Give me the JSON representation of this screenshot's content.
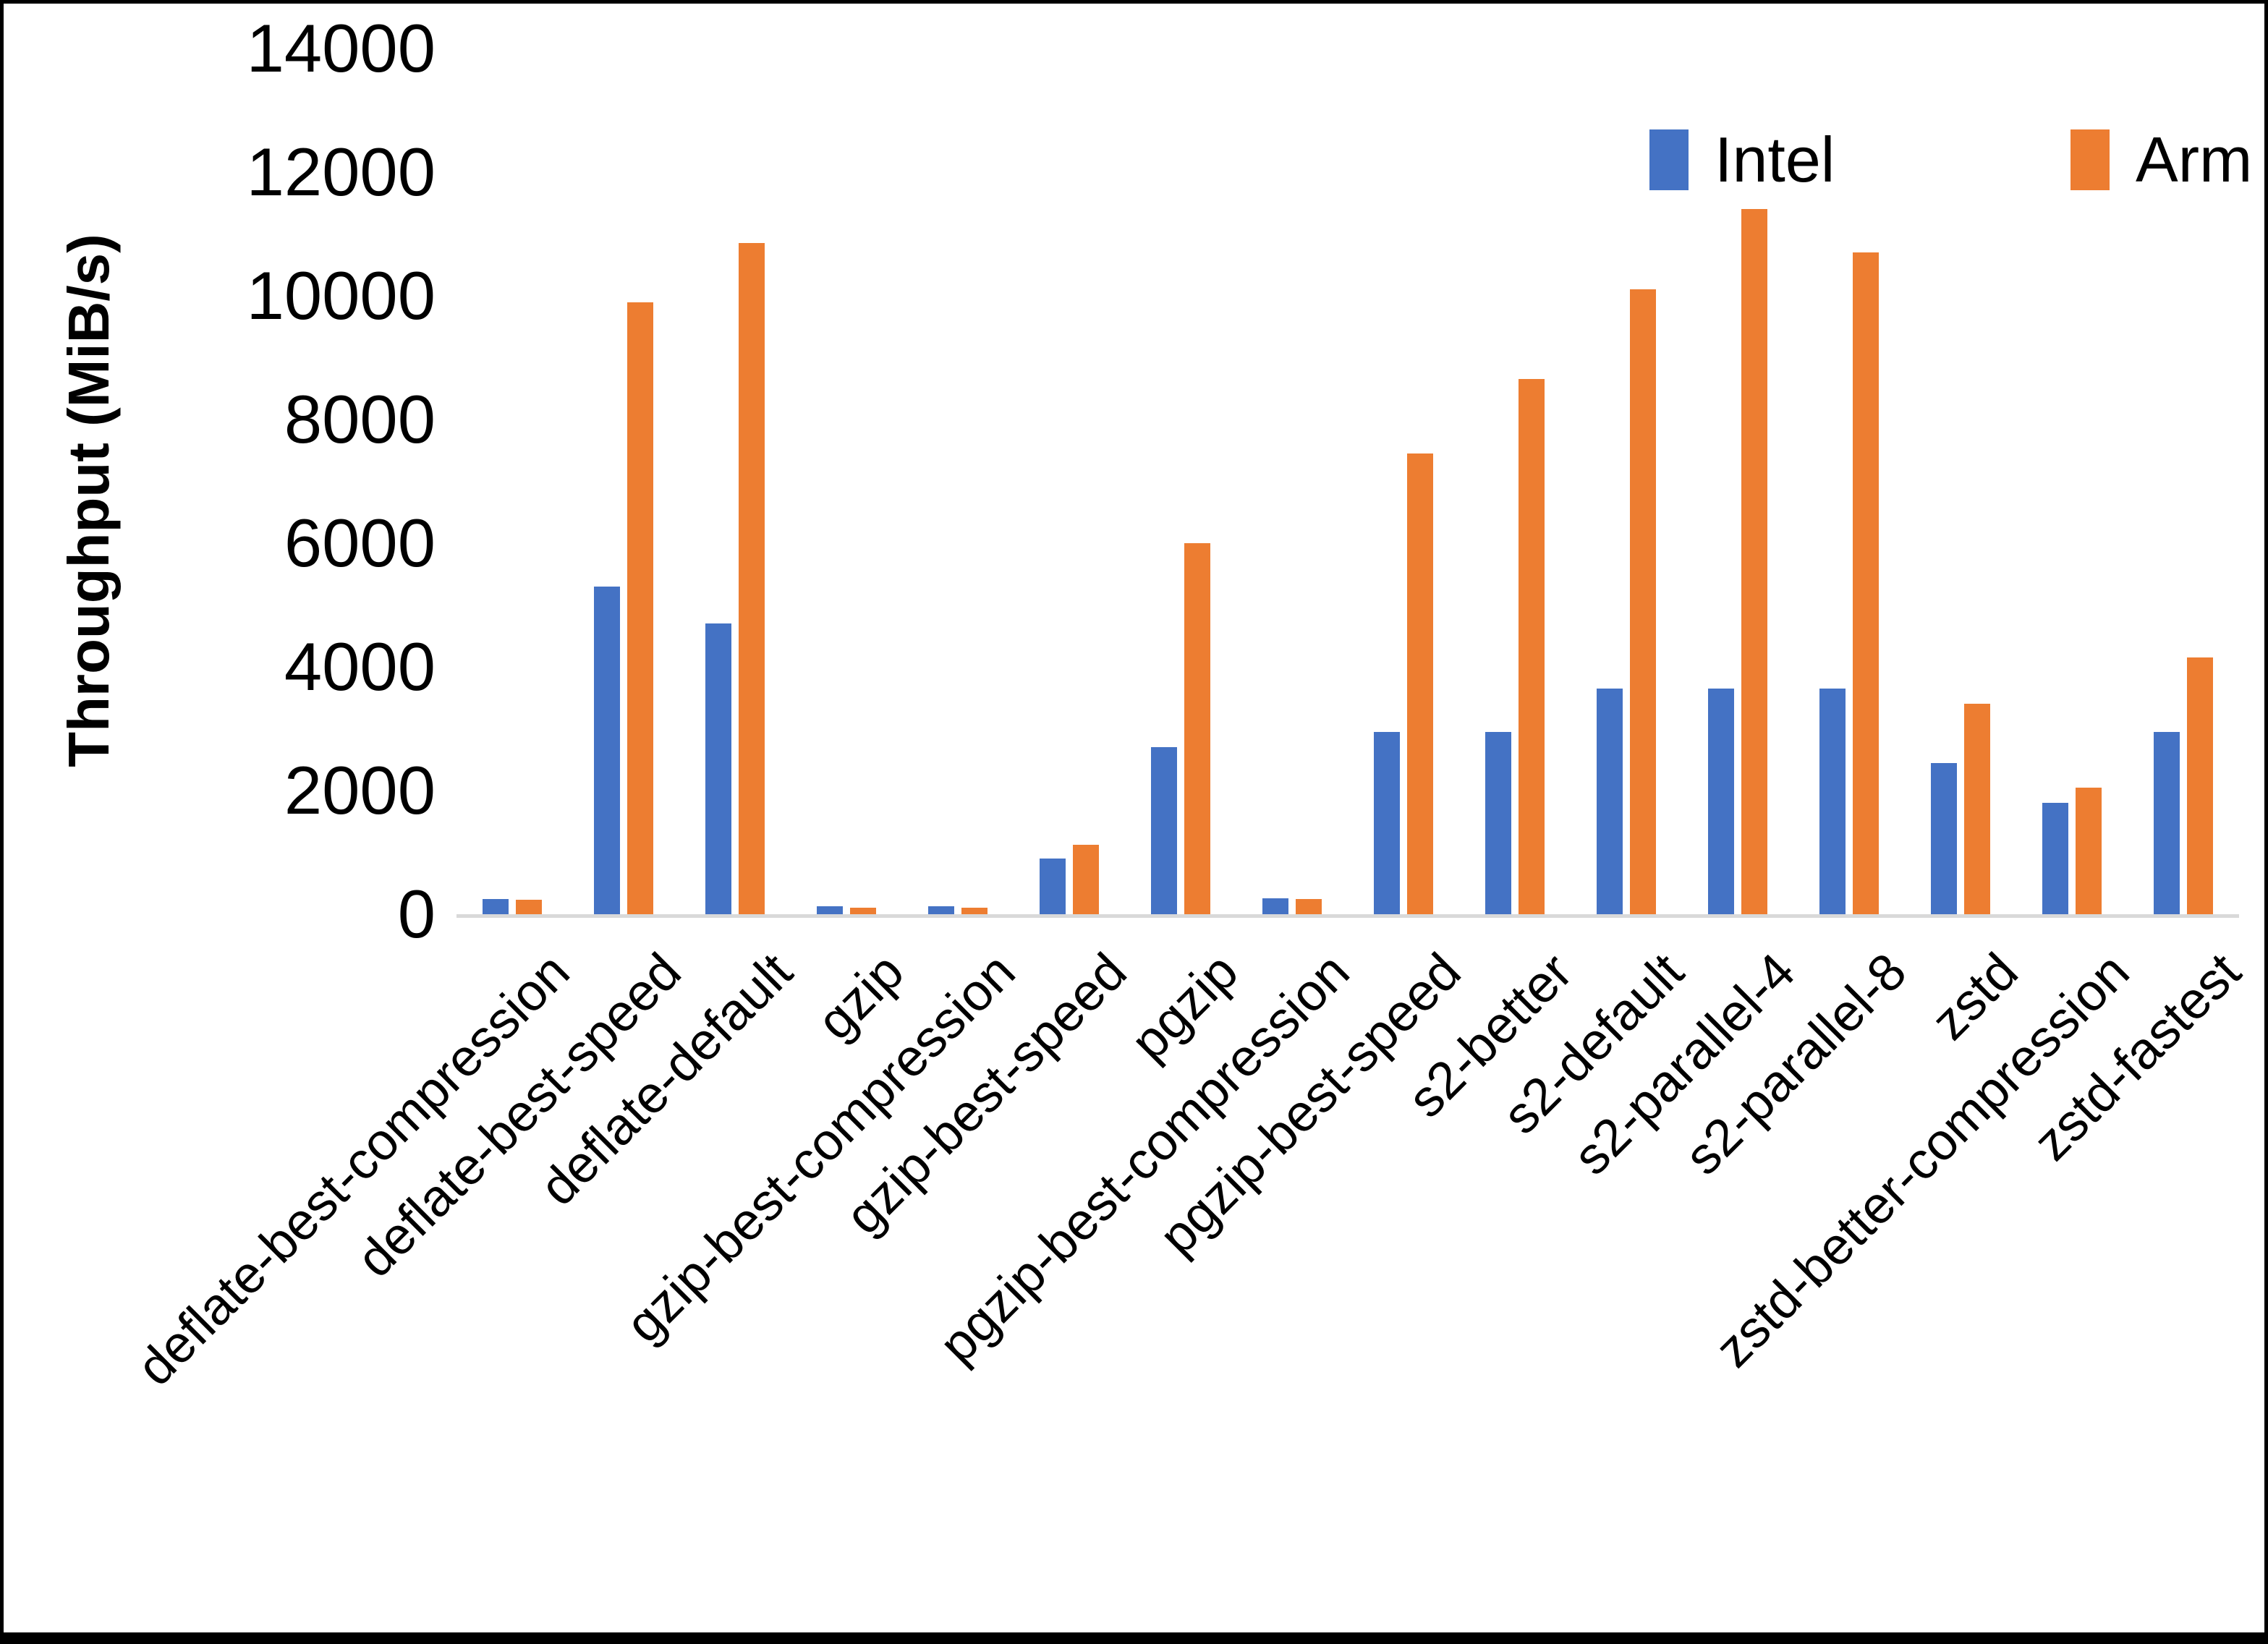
{
  "chart_data": {
    "type": "bar",
    "title": "",
    "xlabel": "",
    "ylabel": "Throughput (MiB/s)",
    "ylim": [
      0,
      14000
    ],
    "yticks": [
      0,
      2000,
      4000,
      6000,
      8000,
      10000,
      12000,
      14000
    ],
    "grid": false,
    "legend_position": "top-right",
    "categories": [
      "deflate-best-compression",
      "deflate-best-speed",
      "deflate-default",
      "gzip",
      "gzip-best-compression",
      "gzip-best-speed",
      "pgzip",
      "pgzip-best-compression",
      "pgzip-best-speed",
      "s2-better",
      "s2-default",
      "s2-parallel-4",
      "s2-parallel-8",
      "zstd",
      "zstd-better-compression",
      "zstd-fastest"
    ],
    "series": [
      {
        "name": "Intel",
        "color": "#4472C4",
        "values": [
          240,
          5300,
          4700,
          130,
          130,
          900,
          2700,
          260,
          2950,
          2950,
          3650,
          3650,
          3650,
          2450,
          1800,
          2950
        ]
      },
      {
        "name": "Arm",
        "color": "#ED7D31",
        "values": [
          230,
          9900,
          10850,
          110,
          110,
          1120,
          6000,
          250,
          7450,
          8650,
          10100,
          11400,
          10700,
          3400,
          2050,
          4150
        ]
      }
    ]
  },
  "colors": {
    "axis_line": "#D9D9D9",
    "text": "#000000",
    "background": "#FFFFFF",
    "frame": "#000000"
  }
}
